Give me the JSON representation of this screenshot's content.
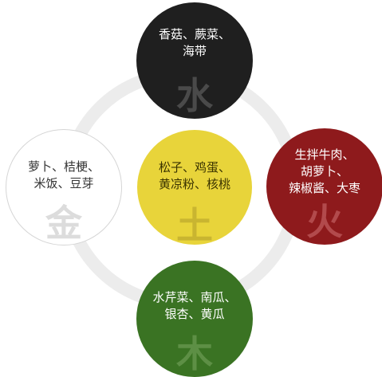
{
  "elements": {
    "water": {
      "glyph": "水",
      "color": "#1f1f1f",
      "foods": [
        "香菇、蕨菜、",
        "海带"
      ]
    },
    "metal": {
      "glyph": "金",
      "color": "#ffffff",
      "foods": [
        "萝卜、桔梗、",
        "米饭、豆芽"
      ]
    },
    "earth": {
      "glyph": "土",
      "color": "#e8d43a",
      "foods": [
        "松子、鸡蛋、",
        "黄凉粉、核桃"
      ]
    },
    "fire": {
      "glyph": "火",
      "color": "#8e1a1c",
      "foods": [
        "生拌牛肉、",
        "胡萝卜、",
        "辣椒酱、大枣"
      ]
    },
    "wood": {
      "glyph": "木",
      "color": "#3a7323",
      "foods": [
        "水芹菜、南瓜、",
        "银杏、黄瓜"
      ]
    }
  },
  "ring_color": "#ececec"
}
